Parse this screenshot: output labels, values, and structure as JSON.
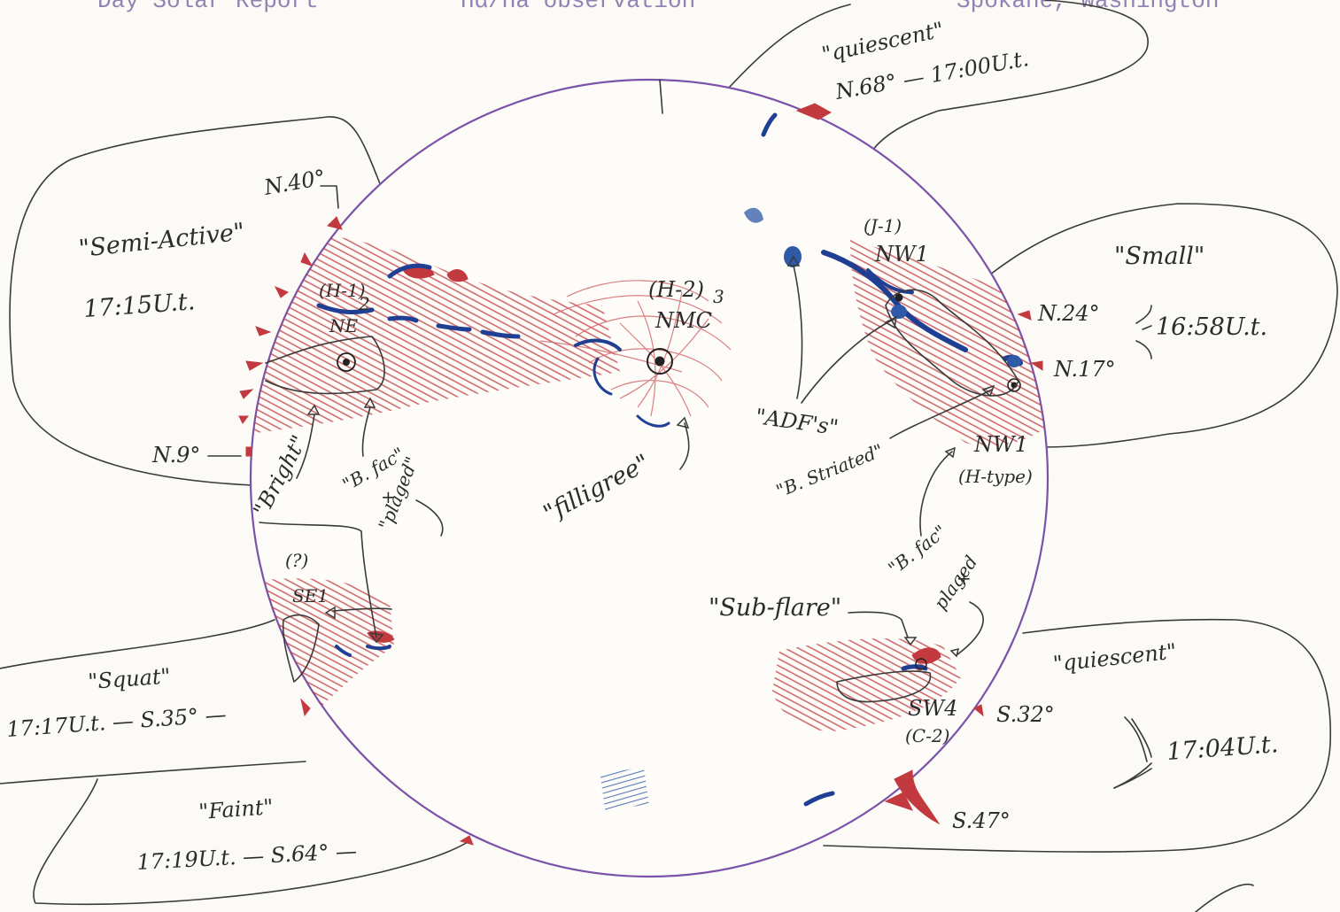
{
  "header": {
    "left": "Day Solar Report",
    "middle": "Hα/Ha observation",
    "right": "Spokane, Washington"
  },
  "regions": {
    "semi_active": {
      "title": "\"Semi-Active\"",
      "time": "17:15U.t.",
      "lat_top": "N.40°",
      "lat_bottom": "N.9°"
    },
    "quiescent_north": {
      "title": "\"quiescent\"",
      "lat_time": "N.68° — 17:00U.t."
    },
    "small": {
      "title": "\"Small\"",
      "lat1": "N.24°",
      "lat2": "N.17°",
      "time": "16:58U.t."
    },
    "squat": {
      "title": "\"Squat\"",
      "line": "17:17U.t. — S.35° —"
    },
    "faint": {
      "title": "\"Faint\"",
      "line": "17:19U.t. — S.64° —"
    },
    "quiescent_south": {
      "title": "\"quiescent\"",
      "lat1": "S.32°",
      "lat2": "S.47°",
      "time": "17:04U.t."
    }
  },
  "labels": {
    "h1": "(H-1)",
    "h1_sub": "2",
    "ne": "NE",
    "h2": "(H-2)",
    "h2_sub": "3",
    "nmc": "NMC",
    "j1": "(J-1)",
    "nw1_top": "NW1",
    "nw1_bottom": "NW1",
    "h_type": "(H-type)",
    "q": "(?)",
    "se": "SE1",
    "sw4": "SW4",
    "c2": "(C-2)",
    "bright": "\"Bright\"",
    "b_fac_left": "\"B. fac\"",
    "plaged_left_plus": "+",
    "plaged_left": "\"plaged\"",
    "filligree": "\"filligree\"",
    "adfs": "\"ADF's\"",
    "b_striated": "\"B. Striated\"",
    "b_fac_right": "\"B. fac\"",
    "plaged_right_plus": "+",
    "plaged_right": "plaged",
    "sub_flare": "\"Sub-flare\""
  },
  "colors": {
    "disk_outline": "#7a52a8",
    "plage_red": "#c23a3f",
    "filament_blue": "#1f3f93",
    "pencil": "#3a3a3a",
    "paper": "#fbfaf6"
  }
}
